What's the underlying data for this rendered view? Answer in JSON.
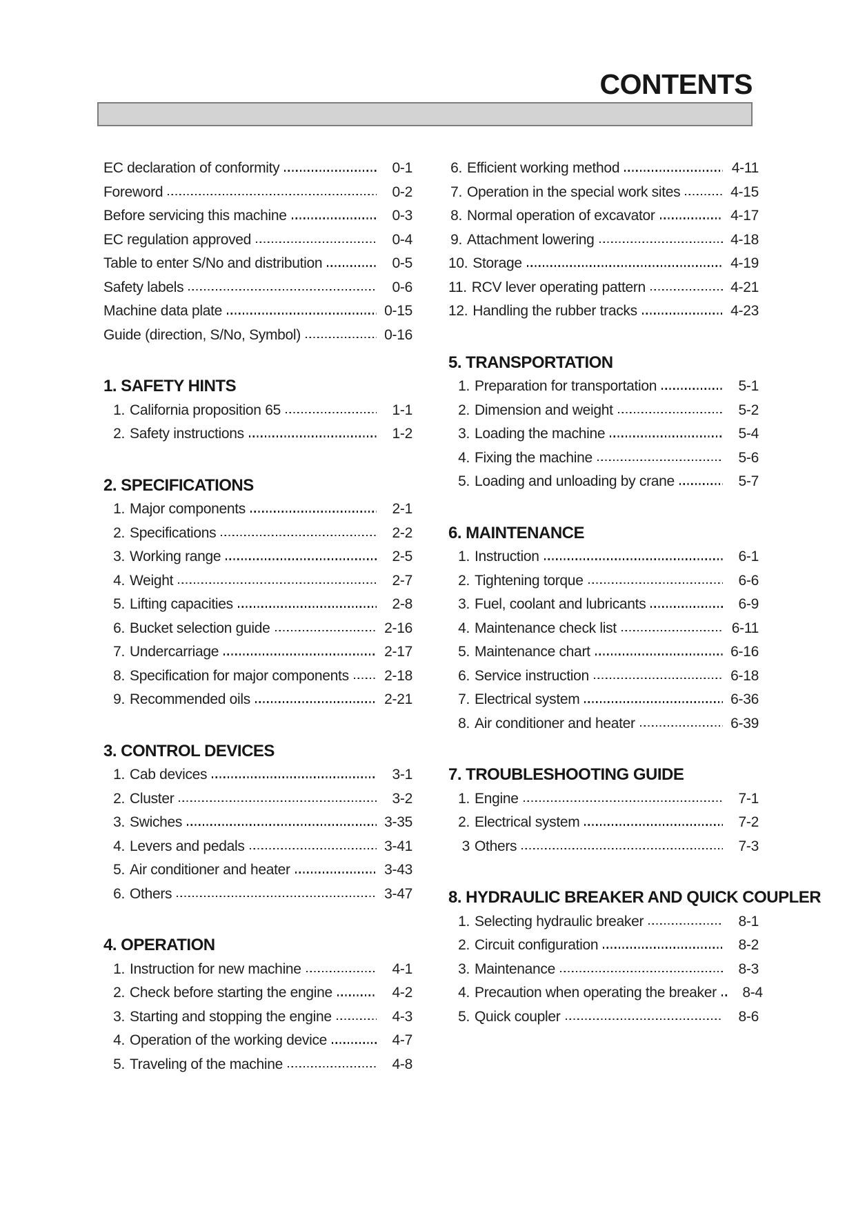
{
  "page": {
    "title": "CONTENTS",
    "background_color": "#ffffff",
    "text_color": "#1e1e1e",
    "bar_fill_color": "#d3d3d3",
    "bar_border_color": "#7d7d7d"
  },
  "left_column": {
    "lead_items": [
      {
        "num": "",
        "label": "EC declaration of conformity",
        "page": "0-1"
      },
      {
        "num": "",
        "label": "Foreword",
        "page": "0-2"
      },
      {
        "num": "",
        "label": "Before servicing this machine",
        "page": "0-3"
      },
      {
        "num": "",
        "label": "EC regulation approved",
        "page": "0-4"
      },
      {
        "num": "",
        "label": "Table to enter S/No and distribution",
        "page": "0-5"
      },
      {
        "num": "",
        "label": "Safety labels",
        "page": "0-6"
      },
      {
        "num": "",
        "label": "Machine data plate",
        "page": "0-15"
      },
      {
        "num": "",
        "label": "Guide (direction, S/No, Symbol)",
        "page": "0-16"
      }
    ],
    "sections": [
      {
        "heading": "1. SAFETY HINTS",
        "items": [
          {
            "num": "1.",
            "label": "California proposition 65",
            "page": "1-1"
          },
          {
            "num": "2.",
            "label": "Safety instructions",
            "page": "1-2"
          }
        ]
      },
      {
        "heading": "2. SPECIFICATIONS",
        "items": [
          {
            "num": "1.",
            "label": "Major components",
            "page": "2-1"
          },
          {
            "num": "2.",
            "label": "Specifications",
            "page": "2-2"
          },
          {
            "num": "3.",
            "label": "Working range",
            "page": "2-5"
          },
          {
            "num": "4.",
            "label": "Weight",
            "page": "2-7"
          },
          {
            "num": "5.",
            "label": "Lifting capacities",
            "page": "2-8"
          },
          {
            "num": "6.",
            "label": "Bucket selection guide",
            "page": "2-16"
          },
          {
            "num": "7.",
            "label": "Undercarriage",
            "page": "2-17"
          },
          {
            "num": "8.",
            "label": "Specification for major components",
            "page": "2-18"
          },
          {
            "num": "9.",
            "label": "Recommended oils",
            "page": "2-21"
          }
        ]
      },
      {
        "heading": "3. CONTROL DEVICES",
        "items": [
          {
            "num": "1.",
            "label": "Cab devices",
            "page": "3-1"
          },
          {
            "num": "2.",
            "label": "Cluster",
            "page": "3-2"
          },
          {
            "num": "3.",
            "label": "Swiches",
            "page": "3-35"
          },
          {
            "num": "4.",
            "label": "Levers and pedals",
            "page": "3-41"
          },
          {
            "num": "5.",
            "label": "Air conditioner and heater",
            "page": "3-43"
          },
          {
            "num": "6.",
            "label": "Others",
            "page": "3-47"
          }
        ]
      },
      {
        "heading": "4. OPERATION",
        "items": [
          {
            "num": "1.",
            "label": "Instruction for new machine",
            "page": "4-1"
          },
          {
            "num": "2.",
            "label": "Check before starting the engine",
            "page": "4-2"
          },
          {
            "num": "3.",
            "label": "Starting and stopping the engine",
            "page": "4-3"
          },
          {
            "num": "4.",
            "label": "Operation of the working device",
            "page": "4-7"
          },
          {
            "num": "5.",
            "label": "Traveling of the machine",
            "page": "4-8"
          }
        ]
      }
    ]
  },
  "right_column": {
    "lead_items": [
      {
        "num": "6.",
        "label": "Efficient working method",
        "page": "4-11"
      },
      {
        "num": "7.",
        "label": "Operation in the special work sites",
        "page": "4-15"
      },
      {
        "num": "8.",
        "label": "Normal operation of excavator",
        "page": "4-17"
      },
      {
        "num": "9.",
        "label": "Attachment lowering",
        "page": "4-18"
      },
      {
        "num": "10.",
        "label": "Storage",
        "page": "4-19"
      },
      {
        "num": "11.",
        "label": "RCV lever operating pattern",
        "page": "4-21"
      },
      {
        "num": "12.",
        "label": "Handling the rubber tracks",
        "page": "4-23"
      }
    ],
    "sections": [
      {
        "heading": "5. TRANSPORTATION",
        "items": [
          {
            "num": "1.",
            "label": "Preparation for transportation",
            "page": "5-1"
          },
          {
            "num": "2.",
            "label": "Dimension and weight",
            "page": "5-2"
          },
          {
            "num": "3.",
            "label": "Loading the machine",
            "page": "5-4"
          },
          {
            "num": "4.",
            "label": "Fixing the machine",
            "page": "5-6"
          },
          {
            "num": "5.",
            "label": "Loading and unloading by crane",
            "page": "5-7"
          }
        ]
      },
      {
        "heading": "6. MAINTENANCE",
        "items": [
          {
            "num": "1.",
            "label": "Instruction",
            "page": "6-1"
          },
          {
            "num": "2.",
            "label": "Tightening torque",
            "page": "6-6"
          },
          {
            "num": "3.",
            "label": "Fuel, coolant and lubricants",
            "page": "6-9"
          },
          {
            "num": "4.",
            "label": "Maintenance check list",
            "page": "6-11"
          },
          {
            "num": "5.",
            "label": "Maintenance chart",
            "page": "6-16"
          },
          {
            "num": "6.",
            "label": "Service instruction",
            "page": "6-18"
          },
          {
            "num": "7.",
            "label": "Electrical system",
            "page": "6-36"
          },
          {
            "num": "8.",
            "label": "Air conditioner and heater",
            "page": "6-39"
          }
        ]
      },
      {
        "heading": "7. TROUBLESHOOTING GUIDE",
        "items": [
          {
            "num": "1.",
            "label": "Engine",
            "page": "7-1"
          },
          {
            "num": "2.",
            "label": "Electrical system",
            "page": "7-2"
          },
          {
            "num": "3",
            "label": "Others",
            "page": "7-3"
          }
        ]
      },
      {
        "heading": "8. HYDRAULIC BREAKER AND QUICK COUPLER",
        "items": [
          {
            "num": "1.",
            "label": "Selecting hydraulic breaker",
            "page": "8-1"
          },
          {
            "num": "2.",
            "label": "Circuit configuration",
            "page": "8-2"
          },
          {
            "num": "3.",
            "label": "Maintenance",
            "page": "8-3"
          },
          {
            "num": "4.",
            "label": "Precaution when operating the breaker",
            "page": "8-4"
          },
          {
            "num": "5.",
            "label": "Quick coupler",
            "page": "8-6"
          }
        ]
      }
    ]
  }
}
